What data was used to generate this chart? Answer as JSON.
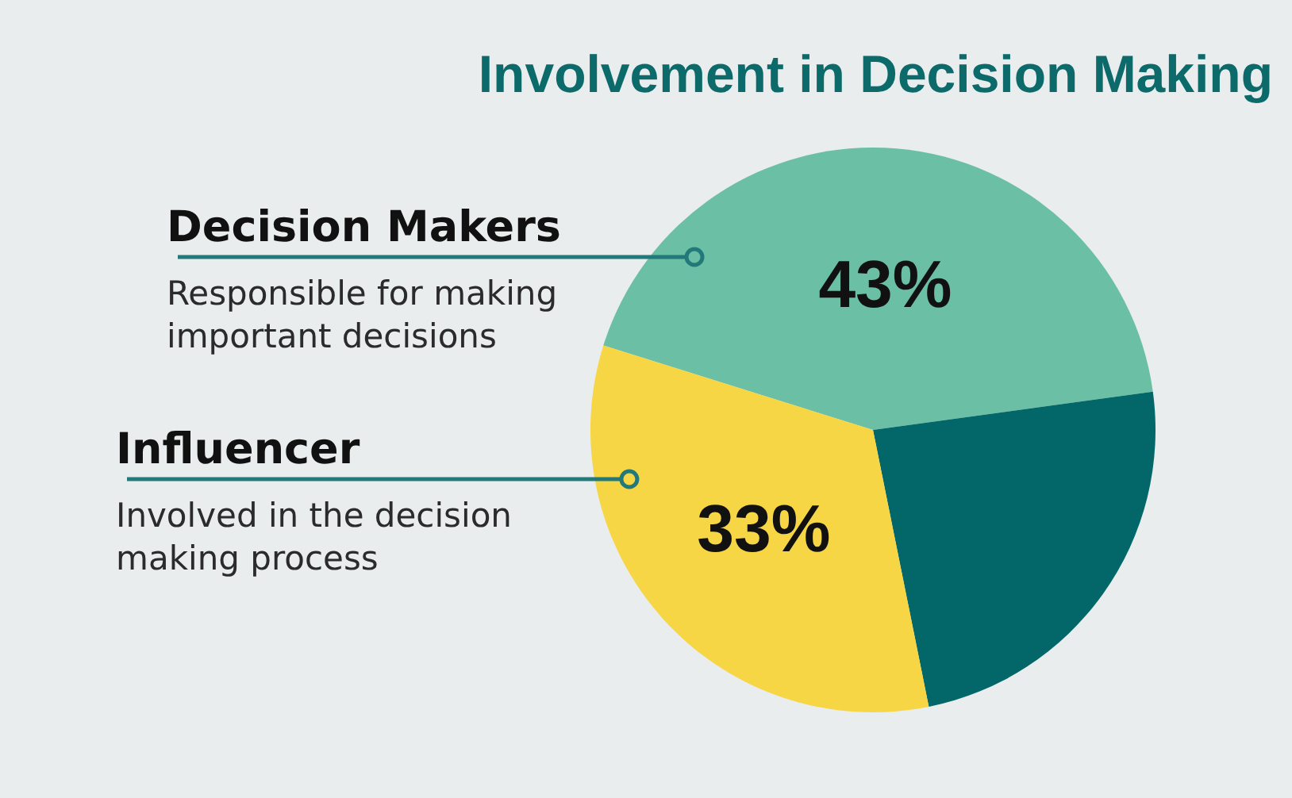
{
  "chart_data": {
    "type": "pie",
    "title": "Involvement in Decision Making",
    "categories": [
      "Decision Makers",
      null,
      "Influencer"
    ],
    "values": [
      43,
      24,
      33
    ],
    "colors": [
      "#6bbfa5",
      "#03676a",
      "#f6d644"
    ],
    "value_labels": [
      "43%",
      null,
      "33%"
    ],
    "annotations": [
      "Responsible for making important decisions",
      "Involved in the decision making process"
    ]
  }
}
